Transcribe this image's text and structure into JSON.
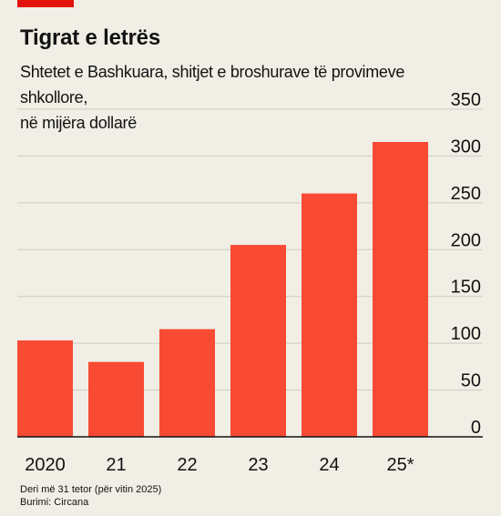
{
  "header": {
    "title": "Tigrat e letrës",
    "subtitle_line1": "Shtetet e Bashkuara, shitjet e broshurave të provimeve shkollore,",
    "subtitle_line2": "në mijëra dollarë"
  },
  "footer": {
    "note": "Deri më 31 tetor (për vitin 2025)",
    "source": "Burimi: Circana"
  },
  "colors": {
    "accent": "#e3120b",
    "bar": "#f94a34",
    "background": "#f0eee5",
    "grid": "#cfccc2"
  },
  "chart_data": {
    "type": "bar",
    "categories": [
      "2020",
      "21",
      "22",
      "23",
      "24",
      "25*"
    ],
    "values": [
      103,
      80,
      115,
      205,
      260,
      315
    ],
    "ylim": [
      0,
      350
    ],
    "yticks": [
      "0",
      "50",
      "100",
      "150",
      "200",
      "250",
      "300",
      "350"
    ],
    "y_axis_position": "right",
    "grid": true
  }
}
